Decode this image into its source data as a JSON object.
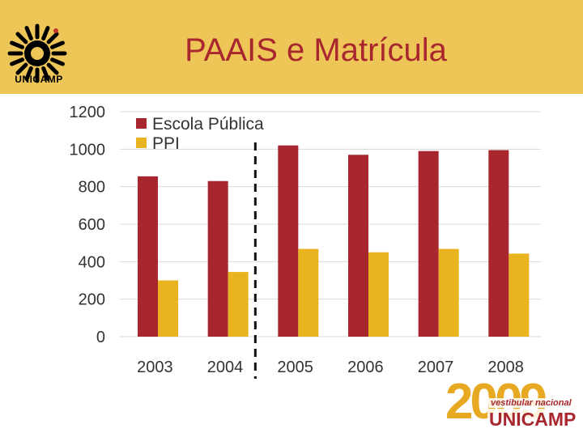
{
  "header": {
    "title": "PAAIS e Matrícula",
    "logo_text": "UNICAMP",
    "bg_color": "#eec658",
    "title_color": "#a8262d"
  },
  "footer": {
    "year": "2009",
    "subtitle": "vestibular nacional",
    "name": "UNICAMP"
  },
  "chart_data": {
    "type": "bar",
    "categories": [
      "2003",
      "2004",
      "2005",
      "2006",
      "2007",
      "2008"
    ],
    "series": [
      {
        "name": "Escola Pública",
        "color": "#a8262d",
        "values": [
          855,
          830,
          1020,
          970,
          990,
          995
        ]
      },
      {
        "name": "PPI",
        "color": "#eab420",
        "values": [
          300,
          345,
          468,
          450,
          468,
          443
        ]
      }
    ],
    "ylim": [
      0,
      1200
    ],
    "yticks": [
      "0",
      "200",
      "400",
      "600",
      "800",
      "1000",
      "1200"
    ],
    "grid": true,
    "legend_position": "top-left",
    "divider_between": [
      "2004",
      "2005"
    ]
  }
}
